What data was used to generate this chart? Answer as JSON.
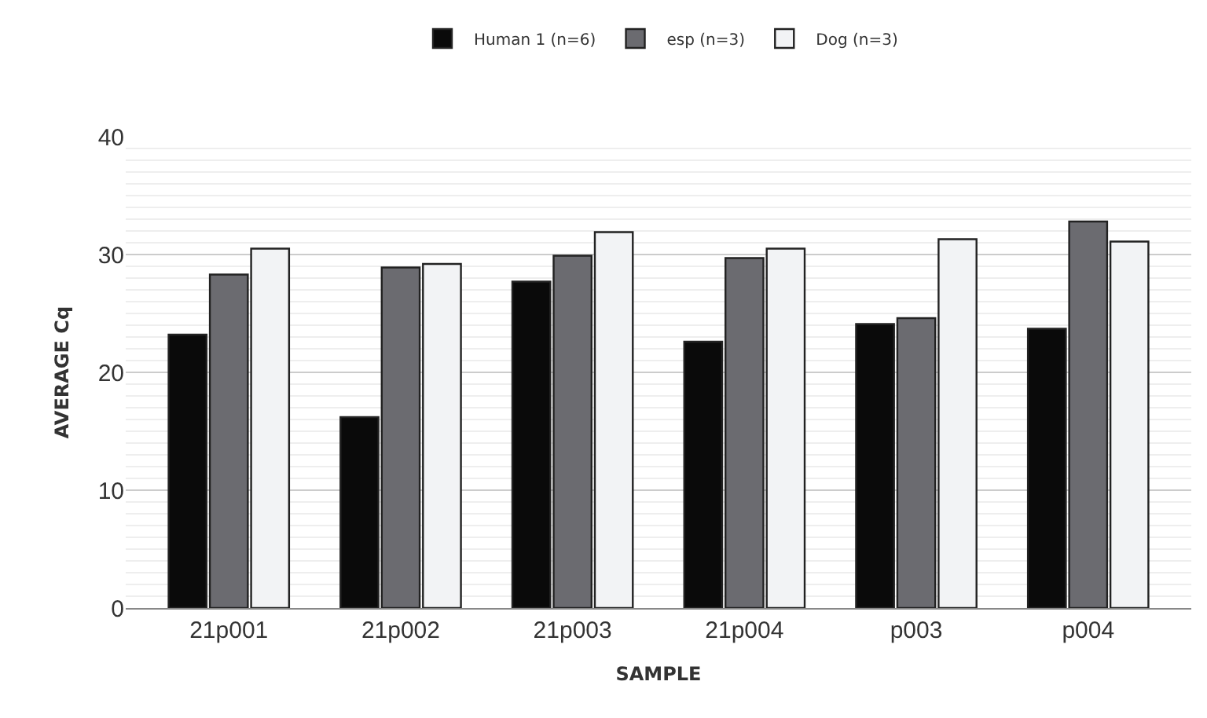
{
  "chart_data": {
    "type": "bar",
    "xlabel": "SAMPLE",
    "ylabel": "AVERAGE Cq",
    "categories": [
      "21p001",
      "21p002",
      "21p003",
      "21p004",
      "p003",
      "p004"
    ],
    "series": [
      {
        "name": "Human 1 (n=6)",
        "color": "#0a0a0a",
        "values": [
          23.2,
          16.2,
          27.7,
          22.6,
          24.1,
          23.7
        ]
      },
      {
        "name": "esp (n=3)",
        "color": "#6b6b70",
        "values": [
          28.3,
          28.9,
          29.9,
          29.7,
          24.6,
          32.8
        ]
      },
      {
        "name": "Dog (n=3)",
        "color": "#f2f3f5",
        "values": [
          30.5,
          29.2,
          31.9,
          30.5,
          31.3,
          31.1
        ]
      }
    ],
    "ylim": [
      0,
      40
    ],
    "yticks": [
      0,
      10,
      20,
      30,
      40
    ],
    "grid": "y",
    "legend": "top"
  }
}
